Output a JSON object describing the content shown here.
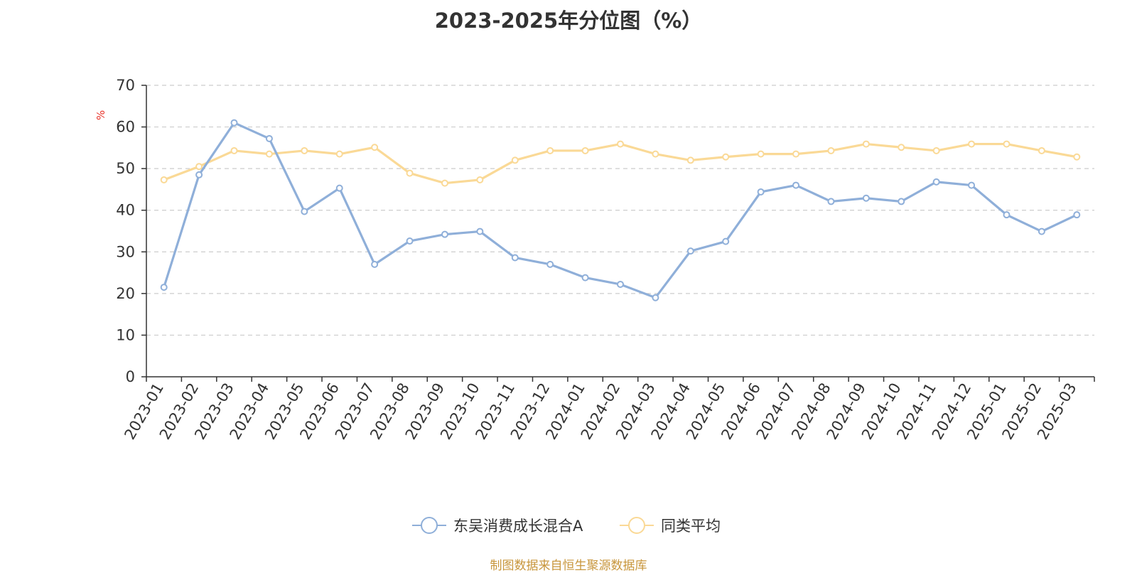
{
  "chart_data": {
    "type": "line",
    "title": "2023-2025年分位图（%）",
    "ylabel": "%",
    "ylim": [
      0,
      70
    ],
    "yticks": [
      0,
      10,
      20,
      30,
      40,
      50,
      60,
      70
    ],
    "grid": true,
    "legend_position": "bottom-center",
    "categories": [
      "2023-01",
      "2023-02",
      "2023-03",
      "2023-04",
      "2023-05",
      "2023-06",
      "2023-07",
      "2023-08",
      "2023-09",
      "2023-10",
      "2023-11",
      "2023-12",
      "2024-01",
      "2024-02",
      "2024-03",
      "2024-04",
      "2024-05",
      "2024-06",
      "2024-07",
      "2024-08",
      "2024-09",
      "2024-10",
      "2024-11",
      "2024-12",
      "2025-01",
      "2025-02",
      "2025-03"
    ],
    "series": [
      {
        "name": "东吴消费成长混合A",
        "color": "#8fafd9",
        "values": [
          21.5,
          48.5,
          61.0,
          57.2,
          39.7,
          45.3,
          27.0,
          32.6,
          34.2,
          34.9,
          28.6,
          27.0,
          23.8,
          22.2,
          19.0,
          30.2,
          32.5,
          44.4,
          46.0,
          42.1,
          42.9,
          42.1,
          46.8,
          46.0,
          38.9,
          34.9,
          38.9
        ]
      },
      {
        "name": "同类平均",
        "color": "#fad996",
        "values": [
          47.3,
          50.5,
          54.3,
          53.5,
          54.3,
          53.5,
          55.1,
          48.9,
          46.5,
          47.3,
          52.0,
          54.3,
          54.3,
          55.9,
          53.5,
          52.0,
          52.8,
          53.5,
          53.5,
          54.3,
          55.9,
          55.1,
          54.3,
          55.9,
          55.9,
          54.3,
          52.8
        ]
      }
    ]
  },
  "footer": {
    "source": "制图数据来自恒生聚源数据库"
  }
}
